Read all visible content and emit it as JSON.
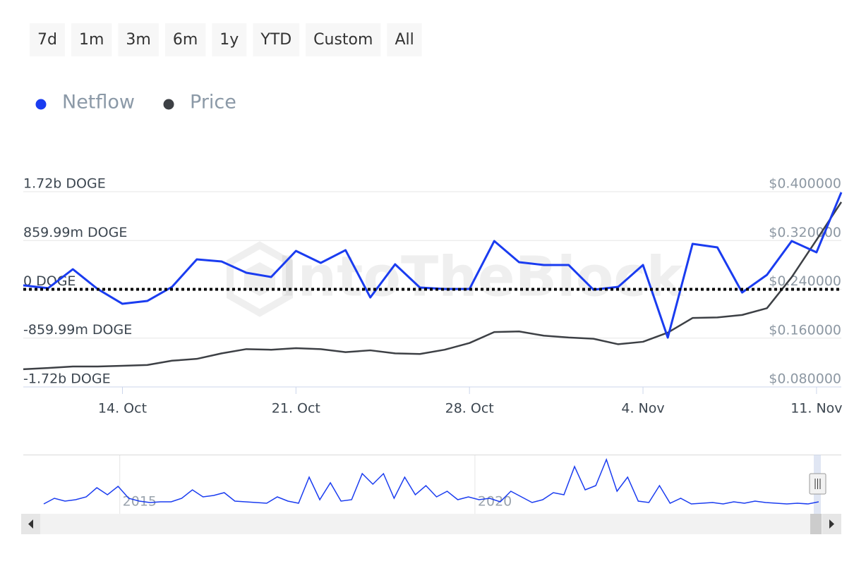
{
  "range_buttons": [
    "7d",
    "1m",
    "3m",
    "6m",
    "1y",
    "YTD",
    "Custom",
    "All"
  ],
  "chart_data": [
    {
      "type": "line",
      "watermark": "IntoTheBlock",
      "x": [
        "10. Oct",
        "11. Oct",
        "12. Oct",
        "13. Oct",
        "14. Oct",
        "15. Oct",
        "16. Oct",
        "17. Oct",
        "18. Oct",
        "19. Oct",
        "20. Oct",
        "21. Oct",
        "22. Oct",
        "23. Oct",
        "24. Oct",
        "25. Oct",
        "26. Oct",
        "27. Oct",
        "28. Oct",
        "29. Oct",
        "30. Oct",
        "31. Oct",
        "1. Nov",
        "2. Nov",
        "3. Nov",
        "4. Nov",
        "5. Nov",
        "6. Nov",
        "7. Nov",
        "8. Nov",
        "9. Nov",
        "10. Nov",
        "11. Nov",
        "12. Nov"
      ],
      "xticks": [
        "14. Oct",
        "21. Oct",
        "28. Oct",
        "4. Nov",
        "11. Nov"
      ],
      "ylim": [
        -1720000000,
        1720000000
      ],
      "yticks": [
        {
          "value": 1720000000,
          "label": "1.72b DOGE"
        },
        {
          "value": 859990000,
          "label": "859.99m DOGE"
        },
        {
          "value": 0,
          "label": "0 DOGE"
        },
        {
          "value": -859990000,
          "label": "-859.99m DOGE"
        },
        {
          "value": -1720000000,
          "label": "-1.72b DOGE"
        }
      ],
      "y2lim": [
        0.08,
        0.4
      ],
      "y2ticks": [
        {
          "value": 0.4,
          "label": "$0.400000"
        },
        {
          "value": 0.32,
          "label": "$0.320000"
        },
        {
          "value": 0.24,
          "label": "$0.240000"
        },
        {
          "value": 0.16,
          "label": "$0.160000"
        },
        {
          "value": 0.08,
          "label": "$0.080000"
        }
      ],
      "grid": true,
      "zero_line": true,
      "series": [
        {
          "name": "Netflow",
          "color": "#1a3cf0",
          "values": [
            70000000,
            20000000,
            354000000,
            5000000,
            -255000000,
            -205000000,
            43000000,
            528000000,
            491000000,
            292000000,
            217000000,
            677000000,
            466000000,
            690000000,
            -143000000,
            441000000,
            31000000,
            6000000,
            6000000,
            851000000,
            478000000,
            429000000,
            429000000,
            -6000000,
            43000000,
            429000000,
            -851000000,
            801000000,
            739000000,
            -56000000,
            255000000,
            851000000,
            652000000,
            1708000000
          ]
        },
        {
          "name": "Price",
          "color": "#3d4045",
          "axis": "y2",
          "values": [
            0.109,
            0.111,
            0.1135,
            0.1135,
            0.1147,
            0.116,
            0.123,
            0.126,
            0.135,
            0.142,
            0.141,
            0.1435,
            0.142,
            0.137,
            0.14,
            0.135,
            0.134,
            0.141,
            0.152,
            0.17,
            0.171,
            0.164,
            0.161,
            0.159,
            0.15,
            0.154,
            0.169,
            0.193,
            0.194,
            0.198,
            0.209,
            0.26,
            0.321,
            0.383
          ]
        }
      ]
    },
    {
      "type": "line",
      "color": "#1a3cf0",
      "xlim": [
        2013.93,
        2024.84
      ],
      "xticks": [
        2015,
        2020
      ],
      "ylim": [
        0,
        70
      ],
      "values": [
        2,
        10,
        6,
        8,
        12,
        25,
        15,
        27,
        10,
        6,
        4,
        5,
        5,
        10,
        22,
        12,
        14,
        18,
        6,
        5,
        4,
        3,
        12,
        6,
        3,
        40,
        8,
        32,
        6,
        8,
        45,
        30,
        45,
        10,
        40,
        15,
        28,
        12,
        20,
        8,
        12,
        8,
        10,
        5,
        20,
        12,
        4,
        8,
        18,
        15,
        55,
        22,
        28,
        65,
        20,
        40,
        6,
        4,
        28,
        3,
        10,
        2,
        3,
        4,
        2,
        5,
        3,
        6,
        4,
        3,
        2,
        3,
        2,
        5
      ]
    }
  ]
}
